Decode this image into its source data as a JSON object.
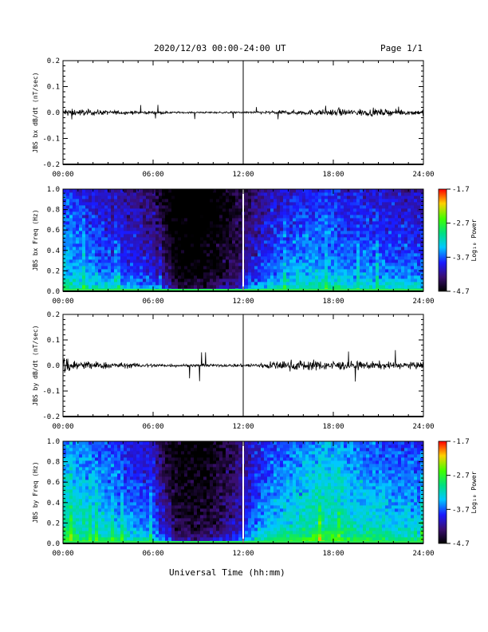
{
  "header": {
    "title": "2020/12/03  00:00-24:00 UT",
    "page": "Page 1/1"
  },
  "x_axis_title": "Universal Time (hh:mm)",
  "colorbar": {
    "label": "Log₁₀ Power",
    "ticks": [
      "-1.7",
      "-2.7",
      "-3.7",
      "-4.7"
    ],
    "range": [
      -4.7,
      -1.7
    ]
  },
  "chart_data": [
    {
      "type": "line",
      "ylabel": "JBS bx dB/dt (nT/sec)",
      "xlim_hours": [
        0,
        24
      ],
      "x_ticks": [
        "00:00",
        "06:00",
        "12:00",
        "18:00",
        "24:00"
      ],
      "ylim": [
        -0.2,
        0.2
      ],
      "y_ticks": [
        "0.2",
        "0.1",
        "0.0",
        "-0.1",
        "-0.2"
      ],
      "marker_line_hour": 12,
      "envelope_hours": [
        0,
        1,
        2,
        3,
        4,
        5,
        6,
        7,
        8,
        9,
        10,
        11,
        12,
        13,
        14,
        15,
        16,
        17,
        18,
        19,
        20,
        21,
        22,
        23,
        24
      ],
      "envelope_amplitude": [
        0.015,
        0.012,
        0.01,
        0.008,
        0.007,
        0.006,
        0.005,
        0.004,
        0.003,
        0.003,
        0.003,
        0.003,
        0.004,
        0.005,
        0.006,
        0.008,
        0.009,
        0.01,
        0.011,
        0.012,
        0.013,
        0.012,
        0.01,
        0.01,
        0.01
      ],
      "peak_abs": 0.03
    },
    {
      "type": "heatmap",
      "ylabel": "JBS bx Freq (Hz)",
      "xlim_hours": [
        0,
        24
      ],
      "x_ticks": [
        "00:00",
        "06:00",
        "12:00",
        "18:00",
        "24:00"
      ],
      "ylim": [
        0,
        1
      ],
      "y_ticks": [
        "1.0",
        "0.8",
        "0.6",
        "0.4",
        "0.2",
        "0.0"
      ],
      "marker_line_hour": 12,
      "zlim": [
        -4.7,
        -1.7
      ],
      "quiet_interval_hours": [
        7.3,
        12.0
      ],
      "low_freq_level_by_hour": [
        -3.3,
        -3.4,
        -3.5,
        -3.6,
        -3.7,
        -3.8,
        -3.9,
        -4.3,
        -4.5,
        -4.5,
        -4.4,
        -4.2,
        -4.0,
        -3.8,
        -3.6,
        -3.5,
        -3.4,
        -3.4,
        -3.4,
        -3.5,
        -3.5,
        -3.5,
        -3.6,
        -3.6,
        -3.6
      ]
    },
    {
      "type": "line",
      "ylabel": "JBS by dB/dt (nT/sec)",
      "xlim_hours": [
        0,
        24
      ],
      "x_ticks": [
        "00:00",
        "06:00",
        "12:00",
        "18:00",
        "24:00"
      ],
      "ylim": [
        -0.2,
        0.2
      ],
      "y_ticks": [
        "0.2",
        "0.1",
        "0.0",
        "-0.1",
        "-0.2"
      ],
      "marker_line_hour": 12,
      "envelope_hours": [
        0,
        1,
        2,
        3,
        4,
        5,
        6,
        7,
        8,
        9,
        10,
        11,
        12,
        13,
        14,
        15,
        16,
        17,
        18,
        19,
        20,
        21,
        22,
        23,
        24
      ],
      "envelope_amplitude": [
        0.035,
        0.02,
        0.015,
        0.012,
        0.01,
        0.008,
        0.007,
        0.006,
        0.005,
        0.005,
        0.005,
        0.005,
        0.006,
        0.01,
        0.015,
        0.018,
        0.02,
        0.018,
        0.016,
        0.016,
        0.015,
        0.014,
        0.013,
        0.012,
        0.012
      ],
      "peak_abs": 0.08
    },
    {
      "type": "heatmap",
      "ylabel": "JBS by Freq (Hz)",
      "xlim_hours": [
        0,
        24
      ],
      "x_ticks": [
        "00:00",
        "06:00",
        "12:00",
        "18:00",
        "24:00"
      ],
      "ylim": [
        0,
        1
      ],
      "y_ticks": [
        "1.0",
        "0.8",
        "0.6",
        "0.4",
        "0.2",
        "0.0"
      ],
      "marker_line_hour": 12,
      "zlim": [
        -4.7,
        -1.7
      ],
      "quiet_interval_hours": [
        7.3,
        12.0
      ],
      "low_freq_level_by_hour": [
        -3.0,
        -3.1,
        -3.2,
        -3.3,
        -3.4,
        -3.5,
        -3.6,
        -4.1,
        -4.3,
        -4.3,
        -4.2,
        -4.0,
        -3.8,
        -3.5,
        -3.3,
        -3.2,
        -3.1,
        -3.0,
        -3.0,
        -3.1,
        -3.2,
        -3.2,
        -3.3,
        -3.3,
        -3.3
      ]
    }
  ]
}
